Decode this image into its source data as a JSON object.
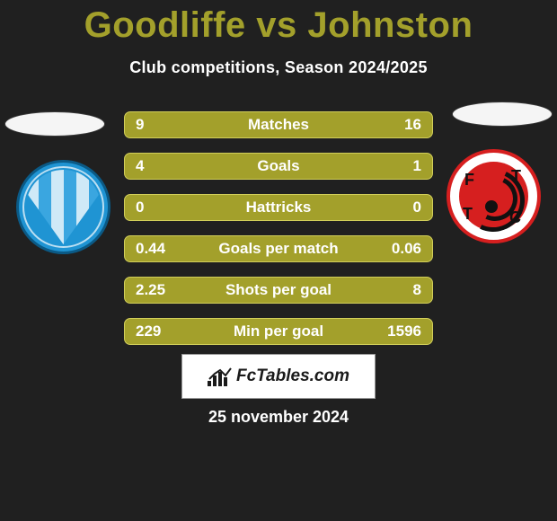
{
  "title_color": "#a3a02b",
  "player_left": "Goodliffe",
  "player_right": "Johnston",
  "subtitle": "Club competitions, Season 2024/2025",
  "stats": {
    "row_bg": "#a3a02b",
    "row_border": "#d2cf5a",
    "text_color": "#ffffff",
    "rows": [
      {
        "label": "Matches",
        "left": "9",
        "right": "16"
      },
      {
        "label": "Goals",
        "left": "4",
        "right": "1"
      },
      {
        "label": "Hattricks",
        "left": "0",
        "right": "0"
      },
      {
        "label": "Goals per match",
        "left": "0.44",
        "right": "0.06"
      },
      {
        "label": "Shots per goal",
        "left": "2.25",
        "right": "8"
      },
      {
        "label": "Min per goal",
        "left": "229",
        "right": "1596"
      }
    ]
  },
  "footer_brand": "FcTables.com",
  "date_text": "25 november 2024"
}
